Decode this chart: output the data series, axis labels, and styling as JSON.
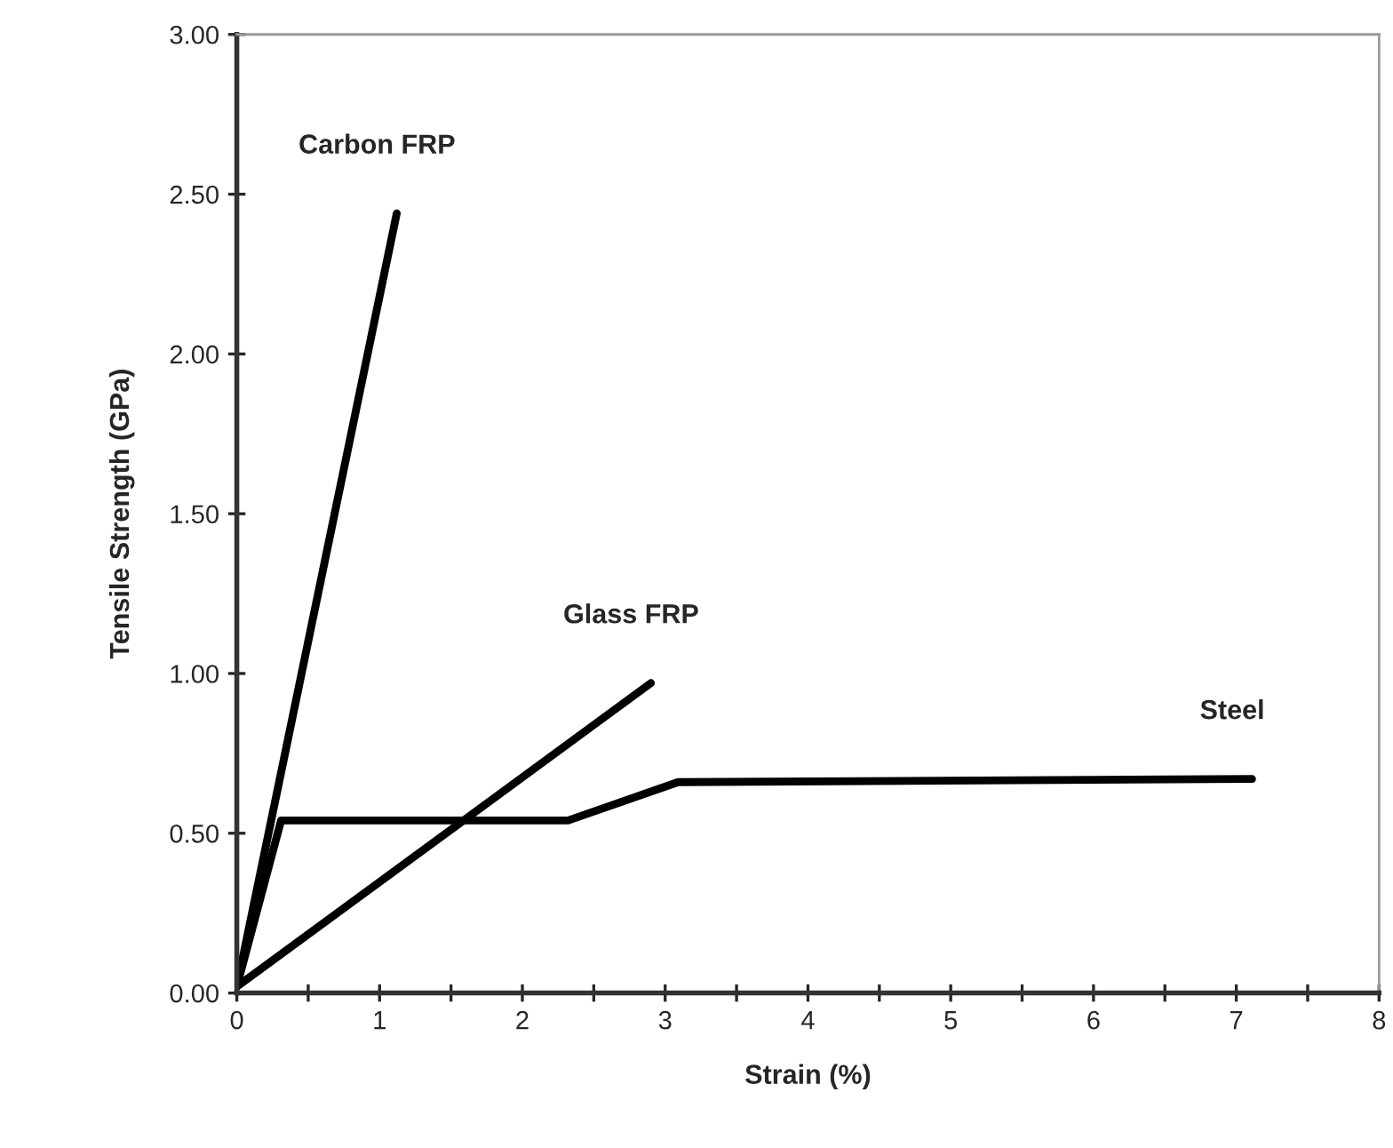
{
  "chart_data": {
    "type": "line",
    "xlabel": "Strain (%)",
    "ylabel": "Tensile Strength (GPa)",
    "series": [
      {
        "name": "Carbon FRP",
        "color": "#000000",
        "x": [
          0,
          1.12
        ],
        "values": [
          0.02,
          2.44
        ]
      },
      {
        "name": "Glass FRP",
        "color": "#000000",
        "x": [
          0,
          2.9
        ],
        "values": [
          0.02,
          0.97
        ]
      },
      {
        "name": "Steel",
        "color": "#000000",
        "x": [
          0,
          0.31,
          2.32,
          3.09,
          7.11
        ],
        "values": [
          0.02,
          0.54,
          0.54,
          0.66,
          0.67
        ]
      }
    ],
    "xlim": [
      0,
      8
    ],
    "xticks": [
      0,
      {
        "value": 0.5,
        "label": null
      },
      1,
      {
        "value": 1.5,
        "label": null
      },
      2,
      {
        "value": 2.5,
        "label": null
      },
      3,
      {
        "value": 3.5,
        "label": null
      },
      4,
      {
        "value": 4.5,
        "label": null
      },
      5,
      {
        "value": 5.5,
        "label": null
      },
      6,
      {
        "value": 6.5,
        "label": null
      },
      7,
      {
        "value": 7.5,
        "label": null
      },
      8
    ],
    "ylim": [
      0,
      3
    ],
    "yticks": [
      {
        "value": 0,
        "label": "0.00"
      },
      {
        "value": 0.5,
        "label": "0.50"
      },
      {
        "value": 1,
        "label": "1.00"
      },
      {
        "value": 1.5,
        "label": "1.50"
      },
      {
        "value": 2,
        "label": "2.00"
      },
      {
        "value": 2.5,
        "label": "2.50"
      },
      {
        "value": 3,
        "label": "3.00"
      }
    ],
    "grid": false,
    "legend": false,
    "marker": "none",
    "line_style": "solid"
  }
}
